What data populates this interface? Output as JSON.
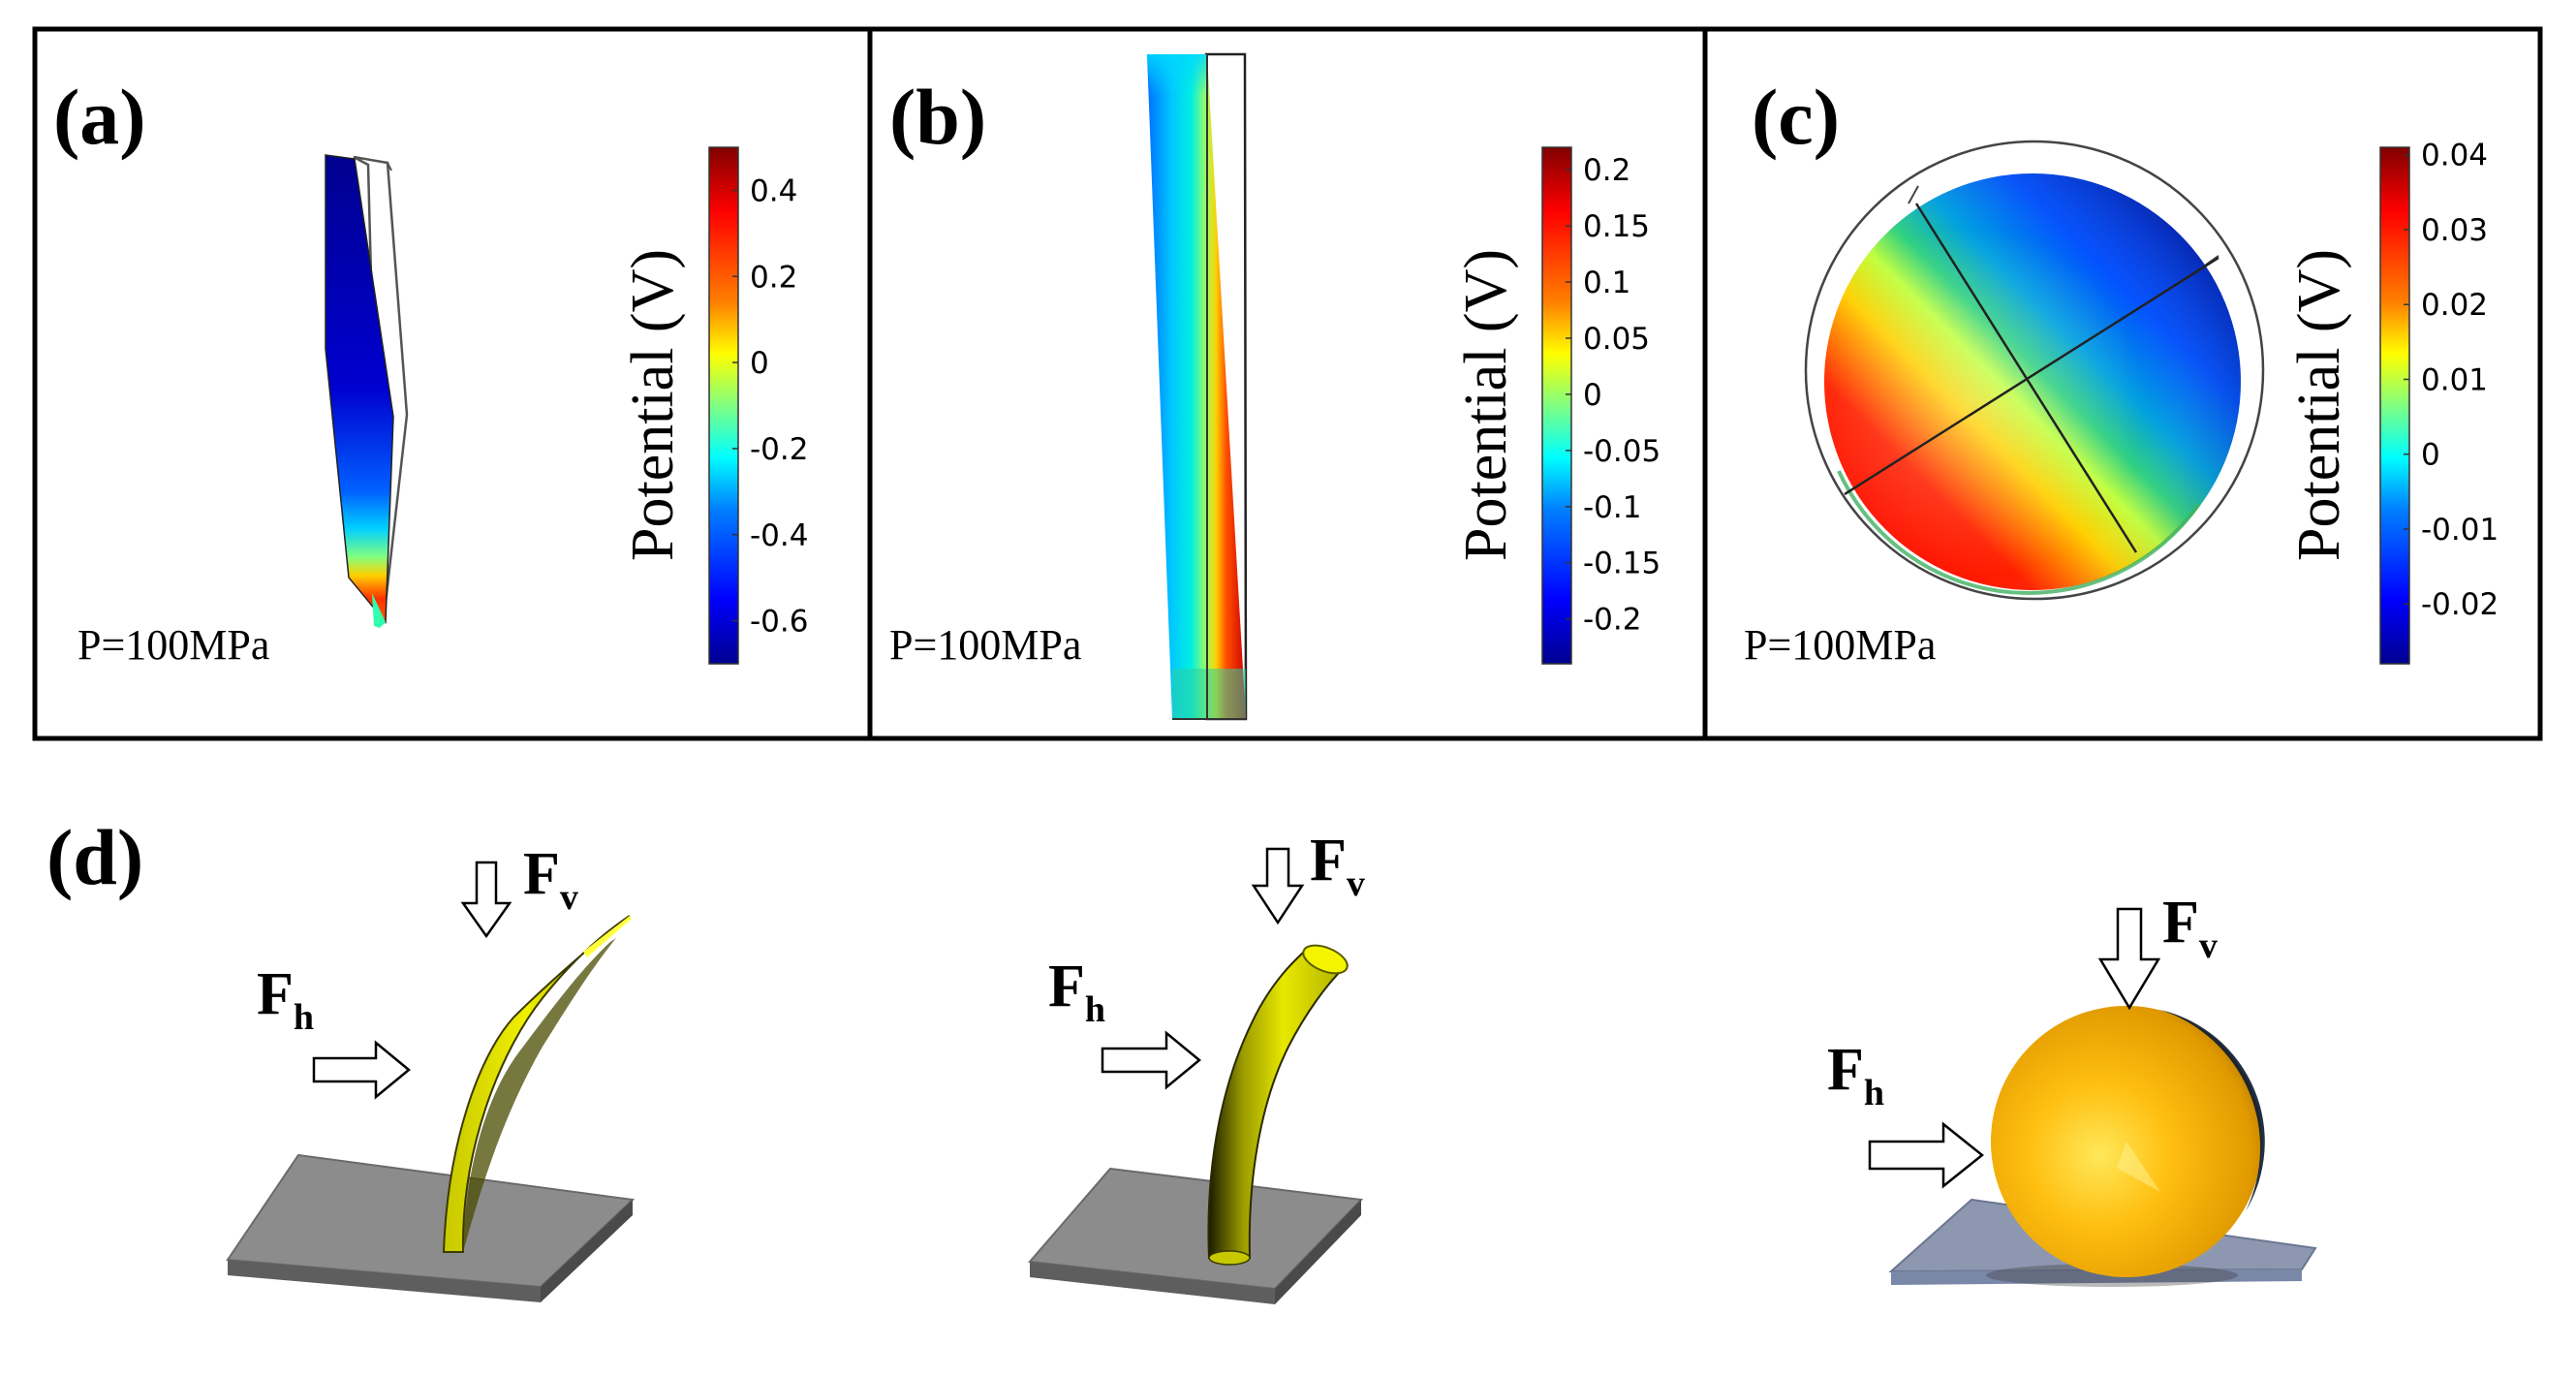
{
  "panels": [
    {
      "label": "(a)",
      "pressure_label": "P=100MPa",
      "colorbar": {
        "title": "Potential (V)",
        "ticks": [
          "0.4",
          "0.2",
          "0",
          "-0.2",
          "-0.4",
          "-0.6"
        ],
        "tick_values": [
          0.4,
          0.2,
          0,
          -0.2,
          -0.4,
          -0.6
        ],
        "range": [
          -0.7,
          0.5
        ]
      }
    },
    {
      "label": "(b)",
      "pressure_label": "P=100MPa",
      "colorbar": {
        "title": "Potential (V)",
        "ticks": [
          "0.2",
          "0.15",
          "0.1",
          "0.05",
          "0",
          "-0.05",
          "-0.1",
          "-0.15",
          "-0.2"
        ],
        "tick_values": [
          0.2,
          0.15,
          0.1,
          0.05,
          0,
          -0.05,
          -0.1,
          -0.15,
          -0.2
        ],
        "range": [
          -0.24,
          0.22
        ]
      }
    },
    {
      "label": "(c)",
      "pressure_label": "P=100MPa",
      "colorbar": {
        "title": "Potential (V)",
        "ticks": [
          "0.04",
          "0.03",
          "0.02",
          "0.01",
          "0",
          "-0.01",
          "-0.02"
        ],
        "tick_values": [
          0.04,
          0.03,
          0.02,
          0.01,
          0,
          -0.01,
          -0.02
        ],
        "range": [
          -0.028,
          0.041
        ]
      }
    }
  ],
  "panel_d": {
    "label": "(d)",
    "force_vertical": {
      "main": "F",
      "sub": "v"
    },
    "force_horizontal": {
      "main": "F",
      "sub": "h"
    }
  },
  "colors": {
    "colormap": [
      "#00008f",
      "#0000ff",
      "#0080ff",
      "#00ffff",
      "#80ff80",
      "#ffff00",
      "#ff8000",
      "#ff0000",
      "#800000"
    ],
    "substrate": "#8c8c8c",
    "structure_yellow": "#e6e600",
    "sphere_gold": "#f2b000"
  }
}
